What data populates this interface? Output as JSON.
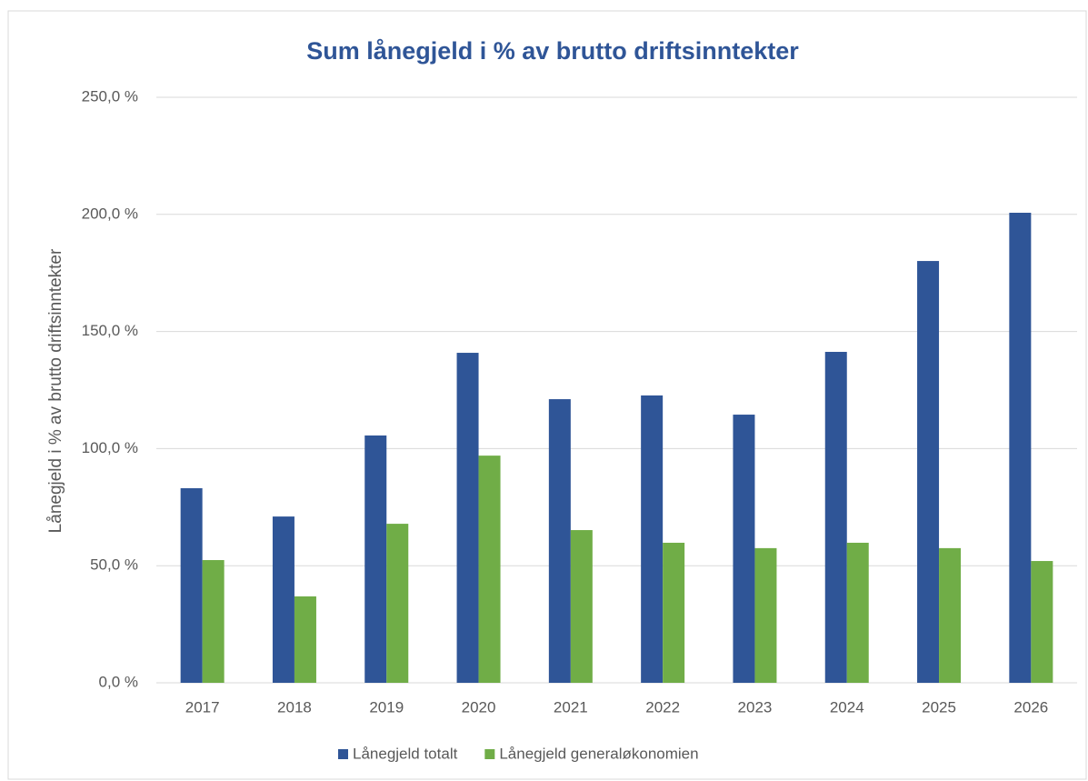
{
  "chart_data": {
    "type": "bar",
    "title": "Sum lånegjeld i % av brutto driftsinntekter",
    "y_label": "Lånegjeld i % av brutto driftsinntekter",
    "categories": [
      "2017",
      "2018",
      "2019",
      "2020",
      "2021",
      "2022",
      "2023",
      "2024",
      "2025",
      "2026"
    ],
    "series": [
      {
        "name": "Lånegjeld totalt",
        "color": "#2f5597",
        "values": [
          83.1,
          71.0,
          105.6,
          140.9,
          121.1,
          122.7,
          114.5,
          141.3,
          180.1,
          200.7
        ]
      },
      {
        "name": "Lånegjeld generaløkonomien",
        "color": "#70ad47",
        "values": [
          52.4,
          36.9,
          67.9,
          97.0,
          65.2,
          59.8,
          57.5,
          59.8,
          57.5,
          52.0
        ]
      }
    ],
    "ylim": [
      0,
      250
    ],
    "yticks": [
      {
        "value": 0,
        "label": "0,0 %"
      },
      {
        "value": 50,
        "label": "50,0 %"
      },
      {
        "value": 100,
        "label": "100,0 %"
      },
      {
        "value": 150,
        "label": "150,0 %"
      },
      {
        "value": 200,
        "label": "200,0 %"
      },
      {
        "value": 250,
        "label": "250,0 %"
      }
    ],
    "grid": true,
    "legend": "bottom"
  }
}
